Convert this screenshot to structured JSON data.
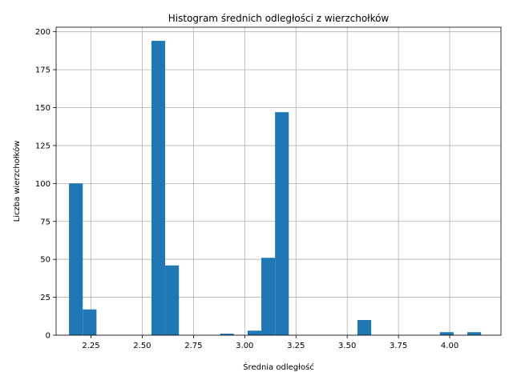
{
  "chart_data": {
    "type": "bar",
    "title": "Histogram średnich odległości z wierzchołków",
    "xlabel": "Średnia odległość",
    "ylabel": "Liczba wierzchołków",
    "grid": true,
    "bar_color": "#1f77b4",
    "xlim": [
      2.08,
      4.25
    ],
    "ylim": [
      0,
      203
    ],
    "x_ticks": [
      2.25,
      2.5,
      2.75,
      3.0,
      3.25,
      3.5,
      3.75,
      4.0
    ],
    "x_tick_labels": [
      "2.25",
      "2.50",
      "2.75",
      "3.00",
      "3.25",
      "3.50",
      "3.75",
      "4.00"
    ],
    "y_ticks": [
      0,
      25,
      50,
      75,
      100,
      125,
      150,
      175,
      200
    ],
    "y_tick_labels": [
      "0",
      "25",
      "50",
      "75",
      "100",
      "125",
      "150",
      "175",
      "200"
    ],
    "bin_edges": [
      2.143,
      2.21,
      2.277,
      2.344,
      2.411,
      2.478,
      2.545,
      2.612,
      2.679,
      2.746,
      2.813,
      2.88,
      2.947,
      3.014,
      3.081,
      3.148,
      3.215,
      3.282,
      3.349,
      3.416,
      3.483,
      3.55,
      3.617,
      3.684,
      3.751,
      3.818,
      3.885,
      3.952,
      4.019,
      4.086,
      4.153
    ],
    "values": [
      100,
      17,
      0,
      0,
      0,
      0,
      194,
      46,
      0,
      0,
      0,
      1,
      0,
      3,
      51,
      147,
      0,
      0,
      0,
      0,
      0,
      10,
      0,
      0,
      0,
      0,
      0,
      2,
      0,
      2
    ]
  }
}
